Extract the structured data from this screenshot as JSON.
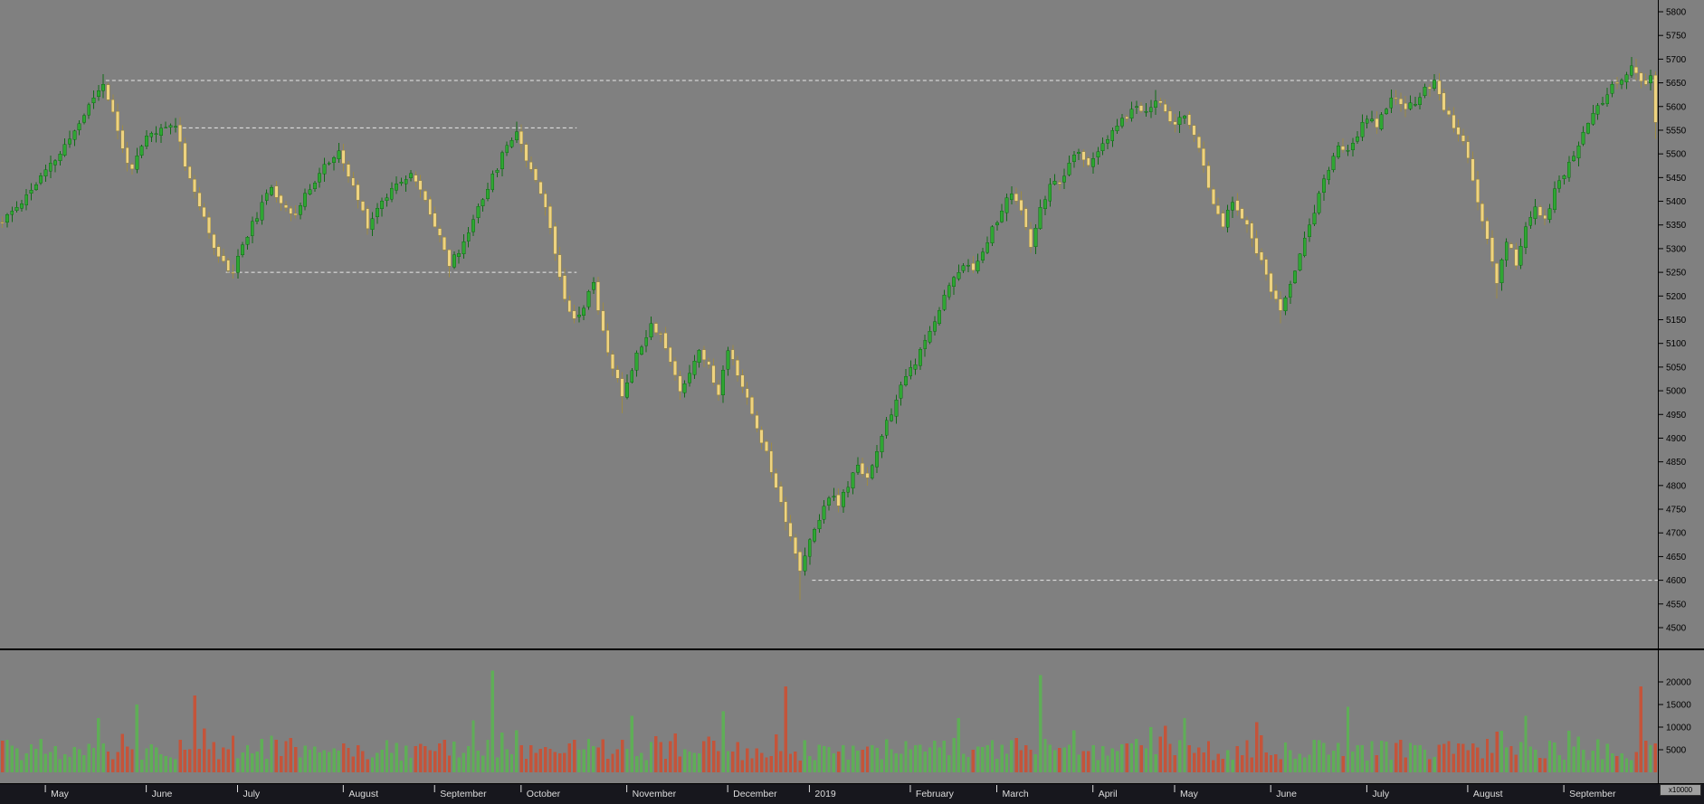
{
  "chart_data": {
    "type": "candlestick",
    "title": "",
    "candle_count": 345,
    "seed": 11,
    "y_axis": {
      "side": "right",
      "min": 4500,
      "max": 5800,
      "tick_step": 50,
      "ticks": [
        5800,
        5750,
        5700,
        5650,
        5600,
        5550,
        5500,
        5450,
        5400,
        5350,
        5300,
        5250,
        5200,
        5150,
        5100,
        5050,
        5000,
        4950,
        4900,
        4850,
        4800,
        4750,
        4700,
        4650,
        4600,
        4550,
        4500
      ]
    },
    "volume_axis": {
      "ticks": [
        20000,
        15000,
        10000,
        5000
      ],
      "multiplier": "x10000"
    },
    "x_axis": {
      "labels": [
        {
          "label": "May",
          "index": 10
        },
        {
          "label": "June",
          "index": 31
        },
        {
          "label": "July",
          "index": 50
        },
        {
          "label": "August",
          "index": 72
        },
        {
          "label": "September",
          "index": 91
        },
        {
          "label": "October",
          "index": 109
        },
        {
          "label": "November",
          "index": 131
        },
        {
          "label": "December",
          "index": 152
        },
        {
          "label": "2019",
          "index": 169
        },
        {
          "label": "February",
          "index": 190
        },
        {
          "label": "March",
          "index": 208
        },
        {
          "label": "April",
          "index": 228
        },
        {
          "label": "May",
          "index": 245
        },
        {
          "label": "June",
          "index": 265
        },
        {
          "label": "July",
          "index": 285
        },
        {
          "label": "August",
          "index": 306
        },
        {
          "label": "September",
          "index": 326
        }
      ]
    },
    "levels": [
      {
        "price": 5655,
        "from": 22,
        "to": 345
      },
      {
        "price": 5555,
        "from": 38,
        "to": 120
      },
      {
        "price": 5250,
        "from": 47,
        "to": 120
      },
      {
        "price": 4600,
        "from": 169,
        "to": 345
      }
    ],
    "price_path": [
      [
        0,
        5355
      ],
      [
        4,
        5400
      ],
      [
        8,
        5450
      ],
      [
        12,
        5500
      ],
      [
        16,
        5565
      ],
      [
        19,
        5620
      ],
      [
        21,
        5650
      ],
      [
        23,
        5585
      ],
      [
        25,
        5510
      ],
      [
        27,
        5465
      ],
      [
        30,
        5535
      ],
      [
        33,
        5550
      ],
      [
        36,
        5565
      ],
      [
        38,
        5480
      ],
      [
        40,
        5420
      ],
      [
        43,
        5330
      ],
      [
        46,
        5268
      ],
      [
        48,
        5252
      ],
      [
        50,
        5310
      ],
      [
        53,
        5370
      ],
      [
        56,
        5430
      ],
      [
        58,
        5400
      ],
      [
        61,
        5370
      ],
      [
        64,
        5430
      ],
      [
        67,
        5475
      ],
      [
        70,
        5500
      ],
      [
        73,
        5430
      ],
      [
        76,
        5350
      ],
      [
        79,
        5400
      ],
      [
        82,
        5440
      ],
      [
        85,
        5460
      ],
      [
        88,
        5400
      ],
      [
        91,
        5330
      ],
      [
        93,
        5265
      ],
      [
        96,
        5310
      ],
      [
        99,
        5390
      ],
      [
        102,
        5450
      ],
      [
        105,
        5520
      ],
      [
        107,
        5550
      ],
      [
        109,
        5490
      ],
      [
        111,
        5450
      ],
      [
        113,
        5390
      ],
      [
        115,
        5290
      ],
      [
        117,
        5200
      ],
      [
        119,
        5150
      ],
      [
        121,
        5180
      ],
      [
        123,
        5230
      ],
      [
        125,
        5120
      ],
      [
        127,
        5050
      ],
      [
        129,
        4990
      ],
      [
        131,
        5050
      ],
      [
        133,
        5100
      ],
      [
        135,
        5140
      ],
      [
        137,
        5120
      ],
      [
        139,
        5060
      ],
      [
        141,
        5000
      ],
      [
        143,
        5040
      ],
      [
        145,
        5090
      ],
      [
        147,
        5050
      ],
      [
        149,
        4990
      ],
      [
        151,
        5090
      ],
      [
        153,
        5040
      ],
      [
        155,
        4980
      ],
      [
        157,
        4920
      ],
      [
        159,
        4870
      ],
      [
        161,
        4800
      ],
      [
        163,
        4730
      ],
      [
        165,
        4660
      ],
      [
        166,
        4615
      ],
      [
        168,
        4680
      ],
      [
        170,
        4730
      ],
      [
        172,
        4780
      ],
      [
        174,
        4760
      ],
      [
        176,
        4800
      ],
      [
        178,
        4840
      ],
      [
        180,
        4820
      ],
      [
        182,
        4870
      ],
      [
        184,
        4930
      ],
      [
        186,
        4980
      ],
      [
        188,
        5030
      ],
      [
        190,
        5060
      ],
      [
        192,
        5100
      ],
      [
        194,
        5150
      ],
      [
        196,
        5200
      ],
      [
        198,
        5240
      ],
      [
        200,
        5270
      ],
      [
        202,
        5250
      ],
      [
        204,
        5300
      ],
      [
        206,
        5340
      ],
      [
        208,
        5380
      ],
      [
        210,
        5420
      ],
      [
        212,
        5380
      ],
      [
        214,
        5300
      ],
      [
        216,
        5380
      ],
      [
        218,
        5440
      ],
      [
        220,
        5430
      ],
      [
        222,
        5480
      ],
      [
        224,
        5500
      ],
      [
        226,
        5480
      ],
      [
        228,
        5500
      ],
      [
        230,
        5530
      ],
      [
        232,
        5560
      ],
      [
        234,
        5580
      ],
      [
        236,
        5600
      ],
      [
        238,
        5590
      ],
      [
        240,
        5615
      ],
      [
        242,
        5590
      ],
      [
        244,
        5560
      ],
      [
        246,
        5580
      ],
      [
        248,
        5540
      ],
      [
        250,
        5470
      ],
      [
        252,
        5400
      ],
      [
        254,
        5350
      ],
      [
        256,
        5400
      ],
      [
        258,
        5370
      ],
      [
        260,
        5320
      ],
      [
        262,
        5270
      ],
      [
        264,
        5210
      ],
      [
        266,
        5165
      ],
      [
        268,
        5230
      ],
      [
        270,
        5290
      ],
      [
        272,
        5350
      ],
      [
        274,
        5410
      ],
      [
        276,
        5470
      ],
      [
        278,
        5520
      ],
      [
        280,
        5500
      ],
      [
        282,
        5540
      ],
      [
        284,
        5580
      ],
      [
        286,
        5560
      ],
      [
        288,
        5600
      ],
      [
        290,
        5620
      ],
      [
        292,
        5590
      ],
      [
        294,
        5610
      ],
      [
        296,
        5640
      ],
      [
        298,
        5650
      ],
      [
        300,
        5600
      ],
      [
        302,
        5560
      ],
      [
        304,
        5520
      ],
      [
        306,
        5450
      ],
      [
        308,
        5360
      ],
      [
        310,
        5270
      ],
      [
        311,
        5230
      ],
      [
        313,
        5320
      ],
      [
        315,
        5270
      ],
      [
        317,
        5340
      ],
      [
        319,
        5390
      ],
      [
        321,
        5360
      ],
      [
        323,
        5420
      ],
      [
        325,
        5460
      ],
      [
        327,
        5500
      ],
      [
        329,
        5540
      ],
      [
        331,
        5580
      ],
      [
        333,
        5610
      ],
      [
        335,
        5640
      ],
      [
        337,
        5660
      ],
      [
        339,
        5680
      ],
      [
        341,
        5660
      ],
      [
        342,
        5640
      ],
      [
        343,
        5660
      ],
      [
        344,
        5560
      ]
    ],
    "wick_overrides": {
      "21": {
        "high": 5668
      },
      "48": {
        "low": 5238
      },
      "93": {
        "low": 5240
      },
      "107": {
        "high": 5568
      },
      "129": {
        "low": 4952
      },
      "166": {
        "low": 4558
      },
      "240": {
        "high": 5635
      },
      "266": {
        "low": 5142
      },
      "298": {
        "high": 5668
      },
      "311": {
        "low": 5195
      },
      "339": {
        "high": 5705
      },
      "344": {
        "low": 5532
      }
    },
    "volume": {
      "spikes": [
        [
          20,
          12000
        ],
        [
          28,
          15000
        ],
        [
          40,
          17000
        ],
        [
          102,
          22500
        ],
        [
          131,
          12500
        ],
        [
          150,
          13500
        ],
        [
          163,
          19000
        ],
        [
          199,
          12000
        ],
        [
          216,
          21500
        ],
        [
          246,
          12000
        ],
        [
          280,
          14500
        ],
        [
          317,
          12500
        ],
        [
          341,
          19000
        ]
      ]
    },
    "colors": {
      "background": "#808080",
      "up": "#2fa633",
      "up_stroke": "#0f6b16",
      "down": "#eed37f",
      "down_stroke": "#9c8a46",
      "up_volume": "#5fae57",
      "down_volume": "#c4543a",
      "level_dash": "#e8e8e8",
      "divider": "#000000",
      "axis_text": "#000000",
      "strip_bg": "#17171d",
      "strip_text": "#dedede"
    },
    "layout_hints": {
      "legend": false,
      "grid": false,
      "price_pane": "top",
      "volume_pane": "bottom"
    }
  }
}
